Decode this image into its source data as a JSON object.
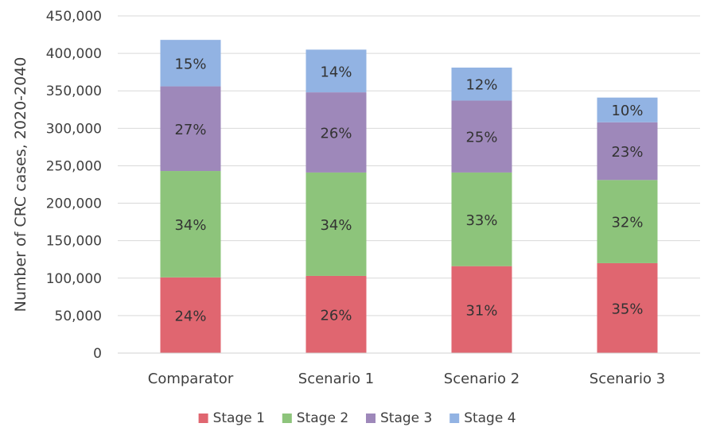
{
  "chart_data": {
    "type": "bar",
    "stacked": true,
    "title": "",
    "xlabel": "",
    "ylabel": "Number of CRC cases, 2020-2040",
    "ylim": [
      0,
      450000
    ],
    "yticks": [
      0,
      50000,
      100000,
      150000,
      200000,
      250000,
      300000,
      350000,
      400000,
      450000
    ],
    "ytick_labels": [
      "0",
      "50,000",
      "100,000",
      "150,000",
      "200,000",
      "250,000",
      "300,000",
      "350,000",
      "400,000",
      "450,000"
    ],
    "grid": true,
    "legend_position": "bottom",
    "categories": [
      "Comparator",
      "Scenario 1",
      "Scenario 2",
      "Scenario 3"
    ],
    "series": [
      {
        "name": "Stage 1",
        "color": "#e06670",
        "values": [
          101000,
          103000,
          116000,
          120000
        ],
        "labels": [
          "24%",
          "26%",
          "31%",
          "35%"
        ]
      },
      {
        "name": "Stage 2",
        "color": "#8dc47b",
        "values": [
          142000,
          138000,
          125000,
          111000
        ],
        "labels": [
          "34%",
          "34%",
          "33%",
          "32%"
        ]
      },
      {
        "name": "Stage 3",
        "color": "#9e88ba",
        "values": [
          113000,
          107000,
          96000,
          77000
        ],
        "labels": [
          "27%",
          "26%",
          "25%",
          "23%"
        ]
      },
      {
        "name": "Stage 4",
        "color": "#92b3e3",
        "values": [
          62000,
          57000,
          44000,
          33000
        ],
        "labels": [
          "15%",
          "14%",
          "12%",
          "10%"
        ]
      }
    ]
  }
}
